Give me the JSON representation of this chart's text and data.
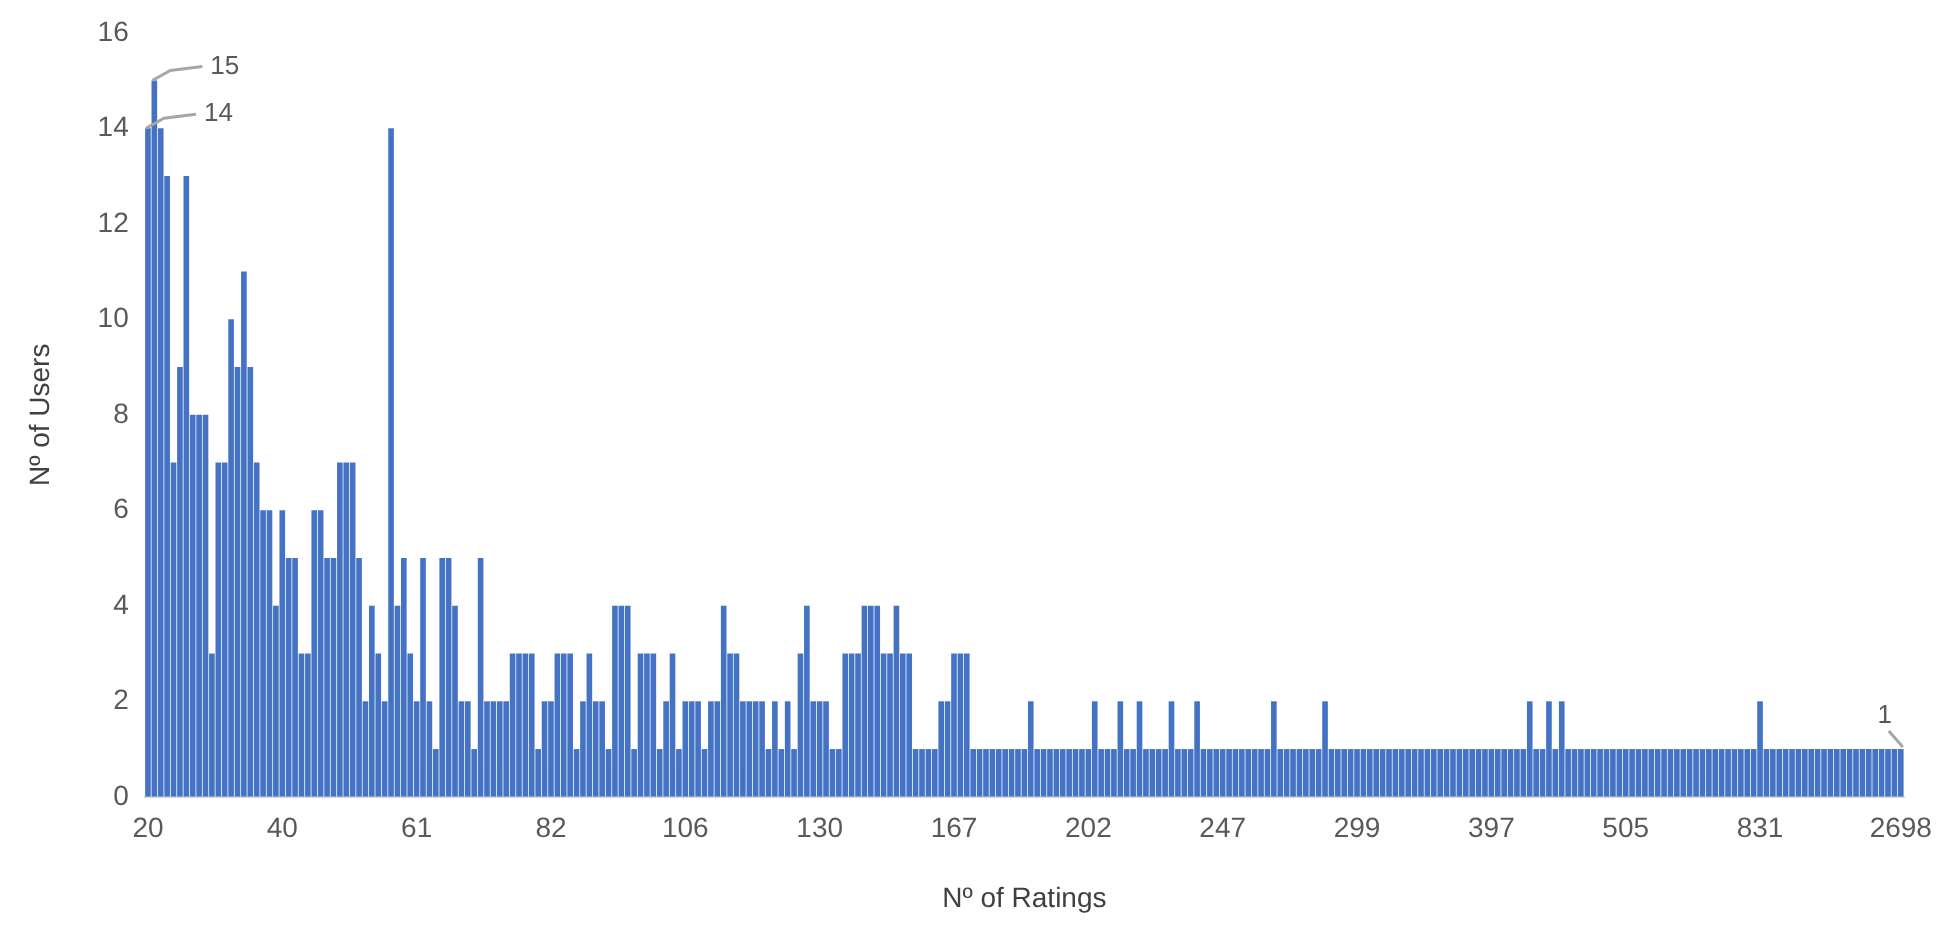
{
  "chart_data": {
    "type": "bar",
    "xlabel": "Nº of Ratings",
    "ylabel": "Nº of Users",
    "color": "#4472c4",
    "categories": [
      "20",
      null,
      null,
      null,
      null,
      null,
      null,
      null,
      null,
      null,
      null,
      null,
      null,
      null,
      null,
      null,
      null,
      null,
      null,
      null,
      null,
      "40",
      null,
      null,
      null,
      null,
      null,
      null,
      null,
      null,
      null,
      null,
      null,
      null,
      null,
      null,
      null,
      null,
      null,
      null,
      null,
      null,
      "61",
      null,
      null,
      null,
      null,
      null,
      null,
      null,
      null,
      null,
      null,
      null,
      null,
      null,
      null,
      null,
      null,
      null,
      null,
      null,
      null,
      "82",
      null,
      null,
      null,
      null,
      null,
      null,
      null,
      null,
      null,
      null,
      null,
      null,
      null,
      null,
      null,
      null,
      null,
      null,
      null,
      null,
      "106",
      null,
      null,
      null,
      null,
      null,
      null,
      null,
      null,
      null,
      null,
      null,
      null,
      null,
      null,
      null,
      null,
      null,
      null,
      null,
      null,
      "130",
      null,
      null,
      null,
      null,
      null,
      null,
      null,
      null,
      null,
      null,
      null,
      null,
      null,
      null,
      null,
      null,
      null,
      null,
      null,
      null,
      "167",
      null,
      null,
      null,
      null,
      null,
      null,
      null,
      null,
      null,
      null,
      null,
      null,
      null,
      null,
      null,
      null,
      null,
      null,
      null,
      null,
      "202",
      null,
      null,
      null,
      null,
      null,
      null,
      null,
      null,
      null,
      null,
      null,
      null,
      null,
      null,
      null,
      null,
      null,
      null,
      null,
      null,
      "247",
      null,
      null,
      null,
      null,
      null,
      null,
      null,
      null,
      null,
      null,
      null,
      null,
      null,
      null,
      null,
      null,
      null,
      null,
      null,
      null,
      "299",
      null,
      null,
      null,
      null,
      null,
      null,
      null,
      null,
      null,
      null,
      null,
      null,
      null,
      null,
      null,
      null,
      null,
      null,
      null,
      null,
      "397",
      null,
      null,
      null,
      null,
      null,
      null,
      null,
      null,
      null,
      null,
      null,
      null,
      null,
      null,
      null,
      null,
      null,
      null,
      null,
      null,
      "505",
      null,
      null,
      null,
      null,
      null,
      null,
      null,
      null,
      null,
      null,
      null,
      null,
      null,
      null,
      null,
      null,
      null,
      null,
      null,
      null,
      "831",
      null,
      null,
      null,
      null,
      null,
      null,
      null,
      null,
      null,
      null,
      null,
      null,
      null,
      null,
      null,
      null,
      null,
      null,
      null,
      null,
      null,
      "2698"
    ],
    "values": [
      14,
      15,
      14,
      13,
      7,
      9,
      13,
      8,
      8,
      8,
      3,
      7,
      7,
      10,
      9,
      11,
      9,
      7,
      6,
      6,
      4,
      6,
      5,
      5,
      3,
      3,
      6,
      6,
      5,
      5,
      7,
      7,
      7,
      5,
      2,
      4,
      3,
      2,
      14,
      4,
      5,
      3,
      2,
      5,
      2,
      1,
      5,
      5,
      4,
      2,
      2,
      1,
      5,
      2,
      2,
      2,
      2,
      3,
      3,
      3,
      3,
      1,
      2,
      2,
      3,
      3,
      3,
      1,
      2,
      3,
      2,
      2,
      1,
      4,
      4,
      4,
      1,
      3,
      3,
      3,
      1,
      2,
      3,
      1,
      2,
      2,
      2,
      1,
      2,
      2,
      4,
      3,
      3,
      2,
      2,
      2,
      2,
      1,
      2,
      1,
      2,
      1,
      3,
      4,
      2,
      2,
      2,
      1,
      1,
      3,
      3,
      3,
      4,
      4,
      4,
      3,
      3,
      4,
      3,
      3,
      1,
      1,
      1,
      1,
      2,
      2,
      3,
      3,
      3,
      1,
      1,
      1,
      1,
      1,
      1,
      1,
      1,
      1,
      2,
      1,
      1,
      1,
      1,
      1,
      1,
      1,
      1,
      1,
      2,
      1,
      1,
      1,
      2,
      1,
      1,
      2,
      1,
      1,
      1,
      1,
      2,
      1,
      1,
      1,
      2,
      1,
      1,
      1,
      1,
      1,
      1,
      1,
      1,
      1,
      1,
      1,
      2,
      1,
      1,
      1,
      1,
      1,
      1,
      1,
      2,
      1,
      1,
      1,
      1,
      1,
      1,
      1,
      1,
      1,
      1,
      1,
      1,
      1,
      1,
      1,
      1,
      1,
      1,
      1,
      1,
      1,
      1,
      1,
      1,
      1,
      1,
      1,
      1,
      1,
      1,
      1,
      2,
      1,
      1,
      2,
      1,
      2,
      1,
      1,
      1,
      1,
      1,
      1,
      1,
      1,
      1,
      1,
      1,
      1,
      1,
      1,
      1,
      1,
      1,
      1,
      1,
      1,
      1,
      1,
      1,
      1,
      1,
      1,
      1,
      1,
      1,
      1,
      2,
      1,
      1,
      1,
      1,
      1,
      1,
      1,
      1,
      1,
      1,
      1,
      1,
      1,
      1,
      1,
      1,
      1,
      1,
      1,
      1,
      1,
      1
    ],
    "value_labels": [
      "14",
      "15",
      null,
      null,
      null,
      null,
      null,
      null,
      null,
      null,
      null,
      null,
      null,
      null,
      null,
      null,
      null,
      null,
      null,
      null,
      null,
      null,
      null,
      null,
      null,
      null,
      null,
      null,
      null,
      null,
      null,
      null,
      null,
      null,
      null,
      null,
      null,
      null,
      null,
      null,
      null,
      null,
      null,
      null,
      null,
      null,
      null,
      null,
      null,
      null,
      null,
      null,
      null,
      null,
      null,
      null,
      null,
      null,
      null,
      null,
      null,
      null,
      null,
      null,
      null,
      null,
      null,
      null,
      null,
      null,
      null,
      null,
      null,
      null,
      null,
      null,
      null,
      null,
      null,
      null,
      null,
      null,
      null,
      null,
      null,
      null,
      null,
      null,
      null,
      null,
      null,
      null,
      null,
      null,
      null,
      null,
      null,
      null,
      null,
      null,
      null,
      null,
      null,
      null,
      null,
      null,
      null,
      null,
      null,
      null,
      null,
      null,
      null,
      null,
      null,
      null,
      null,
      null,
      null,
      null,
      null,
      null,
      null,
      null,
      null,
      null,
      null,
      null,
      null,
      null,
      null,
      null,
      null,
      null,
      null,
      null,
      null,
      null,
      null,
      null,
      null,
      null,
      null,
      null,
      null,
      null,
      null,
      null,
      null,
      null,
      null,
      null,
      null,
      null,
      null,
      null,
      null,
      null,
      null,
      null,
      null,
      null,
      null,
      null,
      null,
      null,
      null,
      null,
      null,
      null,
      null,
      null,
      null,
      null,
      null,
      null,
      null,
      null,
      null,
      null,
      null,
      null,
      null,
      null,
      null,
      null,
      null,
      null,
      null,
      null,
      null,
      null,
      null,
      null,
      null,
      null,
      null,
      null,
      null,
      null,
      null,
      null,
      null,
      null,
      null,
      null,
      null,
      null,
      null,
      null,
      null,
      null,
      null,
      null,
      null,
      null,
      null,
      null,
      null,
      null,
      null,
      null,
      null,
      null,
      null,
      null,
      null,
      null,
      null,
      null,
      null,
      null,
      null,
      null,
      null,
      null,
      null,
      null,
      null,
      null,
      null,
      null,
      null,
      null,
      null,
      null,
      null,
      null,
      null,
      null,
      null,
      null,
      null,
      null,
      null,
      null,
      null,
      null,
      null,
      null,
      null,
      null,
      null,
      null,
      null,
      null,
      null,
      null,
      null,
      null,
      null,
      null,
      null,
      null,
      "1"
    ],
    "ylim": [
      0,
      16
    ],
    "yticks": [
      0,
      2,
      4,
      6,
      8,
      10,
      12,
      14,
      16
    ],
    "grid": false,
    "legend": false
  }
}
